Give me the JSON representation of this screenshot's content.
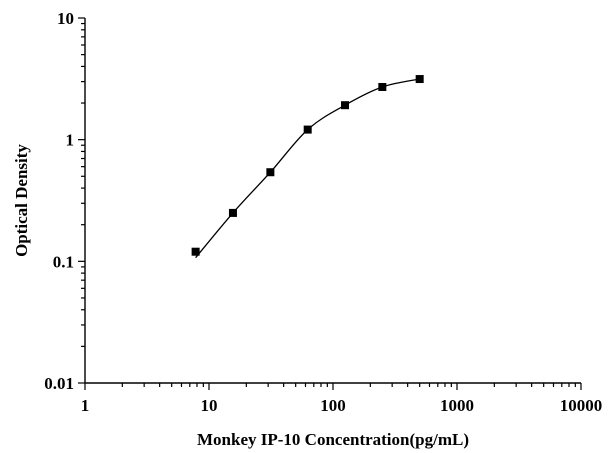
{
  "chart_data": {
    "type": "scatter",
    "title": "",
    "xlabel": "Monkey IP-10 Concentration(pg/mL)",
    "ylabel": "Optical Density",
    "xscale": "log",
    "yscale": "log",
    "xlim": [
      1,
      10000
    ],
    "ylim": [
      0.01,
      10
    ],
    "x_ticks": [
      1,
      10,
      100,
      1000,
      10000
    ],
    "x_tick_labels": [
      "1",
      "10",
      "100",
      "1000",
      "10000"
    ],
    "y_ticks": [
      0.01,
      0.1,
      1,
      10
    ],
    "y_tick_labels": [
      "0.01",
      "0.1",
      "1",
      "10"
    ],
    "grid": false,
    "legend": "none",
    "series": [
      {
        "marker": "square",
        "fitted_curve": true,
        "x": [
          7.8,
          15.6,
          31.25,
          62.5,
          125,
          250,
          500
        ],
        "y": [
          0.12,
          0.25,
          0.54,
          1.21,
          1.92,
          2.71,
          3.15
        ]
      }
    ],
    "colors": {
      "marker": "#000000",
      "curve": "#000000",
      "axes": "#000000"
    }
  }
}
